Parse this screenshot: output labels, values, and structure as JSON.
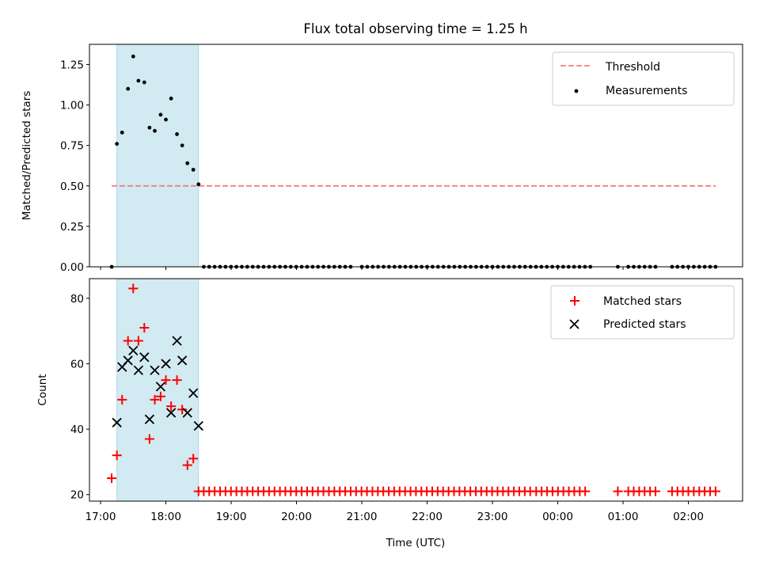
{
  "title": "Flux total observing time = 1.25 h",
  "chart_data": [
    {
      "type": "scatter",
      "ylabel": "Matched/Predicted stars",
      "xlabel": "",
      "ylim": [
        0,
        1.375
      ],
      "y_ticks": [
        0,
        0.25,
        0.5,
        0.75,
        1.0,
        1.25
      ],
      "y_tick_labels": [
        "0.00",
        "0.25",
        "0.50",
        "0.75",
        "1.00",
        "1.25"
      ],
      "shaded_span_hours": [
        17.25,
        18.5
      ],
      "shaded_color": "#add8e6",
      "legend": {
        "placement": "top-right",
        "entries": [
          "Threshold",
          "Measurements"
        ]
      },
      "threshold": {
        "name": "Threshold",
        "value": 0.5,
        "x_range": [
          17.17,
          26.42
        ],
        "color": "#f08080"
      },
      "measurements": {
        "name": "Measurements",
        "color": "#000000",
        "points": [
          [
            17.17,
            0.0
          ],
          [
            17.25,
            0.76
          ],
          [
            17.33,
            0.83
          ],
          [
            17.42,
            1.1
          ],
          [
            17.5,
            1.3
          ],
          [
            17.58,
            1.15
          ],
          [
            17.67,
            1.14
          ],
          [
            17.75,
            0.86
          ],
          [
            17.83,
            0.84
          ],
          [
            17.92,
            0.94
          ],
          [
            18.0,
            0.91
          ],
          [
            18.08,
            1.04
          ],
          [
            18.17,
            0.82
          ],
          [
            18.25,
            0.75
          ],
          [
            18.33,
            0.64
          ],
          [
            18.42,
            0.6
          ],
          [
            18.5,
            0.51
          ]
        ],
        "zero_run": {
          "y": 0.0,
          "ranges": [
            [
              18.58,
              20.83
            ],
            [
              21.0,
              21.92
            ],
            [
              22.0,
              23.17
            ],
            [
              23.25,
              24.5
            ],
            [
              24.92,
              25.0
            ],
            [
              25.08,
              25.5
            ],
            [
              25.75,
              26.42
            ]
          ],
          "step_hours": 0.0833
        }
      }
    },
    {
      "type": "scatter",
      "ylabel": "Count",
      "xlabel": "Time (UTC)",
      "ylim": [
        18,
        86
      ],
      "y_ticks": [
        20,
        40,
        60,
        80
      ],
      "y_tick_labels": [
        "20",
        "40",
        "60",
        "80"
      ],
      "x_range_hours": [
        16.83,
        26.83
      ],
      "x_ticks_hours": [
        17,
        18,
        19,
        20,
        21,
        22,
        23,
        24,
        25,
        26
      ],
      "x_tick_labels": [
        "17:00",
        "18:00",
        "19:00",
        "20:00",
        "21:00",
        "22:00",
        "23:00",
        "00:00",
        "01:00",
        "02:00"
      ],
      "shaded_span_hours": [
        17.25,
        18.5
      ],
      "shaded_color": "#add8e6",
      "legend": {
        "placement": "top-right",
        "entries": [
          "Matched stars",
          "Predicted stars"
        ]
      },
      "matched": {
        "name": "Matched stars",
        "marker": "+",
        "color": "#ff0000",
        "points": [
          [
            17.17,
            25
          ],
          [
            17.25,
            32
          ],
          [
            17.33,
            49
          ],
          [
            17.42,
            67
          ],
          [
            17.5,
            83
          ],
          [
            17.58,
            67
          ],
          [
            17.67,
            71
          ],
          [
            17.75,
            37
          ],
          [
            17.83,
            49
          ],
          [
            17.92,
            50
          ],
          [
            18.0,
            55
          ],
          [
            18.08,
            47
          ],
          [
            18.17,
            55
          ],
          [
            18.25,
            46
          ],
          [
            18.33,
            29
          ],
          [
            18.42,
            31
          ],
          [
            18.5,
            21
          ]
        ],
        "flat_run": {
          "y": 21,
          "ranges": [
            [
              18.58,
              23.58
            ],
            [
              23.67,
              24.5
            ],
            [
              24.92,
              25.0
            ],
            [
              25.08,
              25.5
            ],
            [
              25.75,
              26.42
            ]
          ],
          "step_hours": 0.0833
        }
      },
      "predicted": {
        "name": "Predicted stars",
        "marker": "x",
        "color": "#000000",
        "points": [
          [
            17.25,
            42
          ],
          [
            17.33,
            59
          ],
          [
            17.42,
            61
          ],
          [
            17.5,
            64
          ],
          [
            17.58,
            58
          ],
          [
            17.67,
            62
          ],
          [
            17.75,
            43
          ],
          [
            17.83,
            58
          ],
          [
            17.92,
            53
          ],
          [
            18.0,
            60
          ],
          [
            18.08,
            45
          ],
          [
            18.17,
            67
          ],
          [
            18.25,
            61
          ],
          [
            18.33,
            45
          ],
          [
            18.42,
            51
          ],
          [
            18.5,
            41
          ]
        ]
      }
    }
  ]
}
